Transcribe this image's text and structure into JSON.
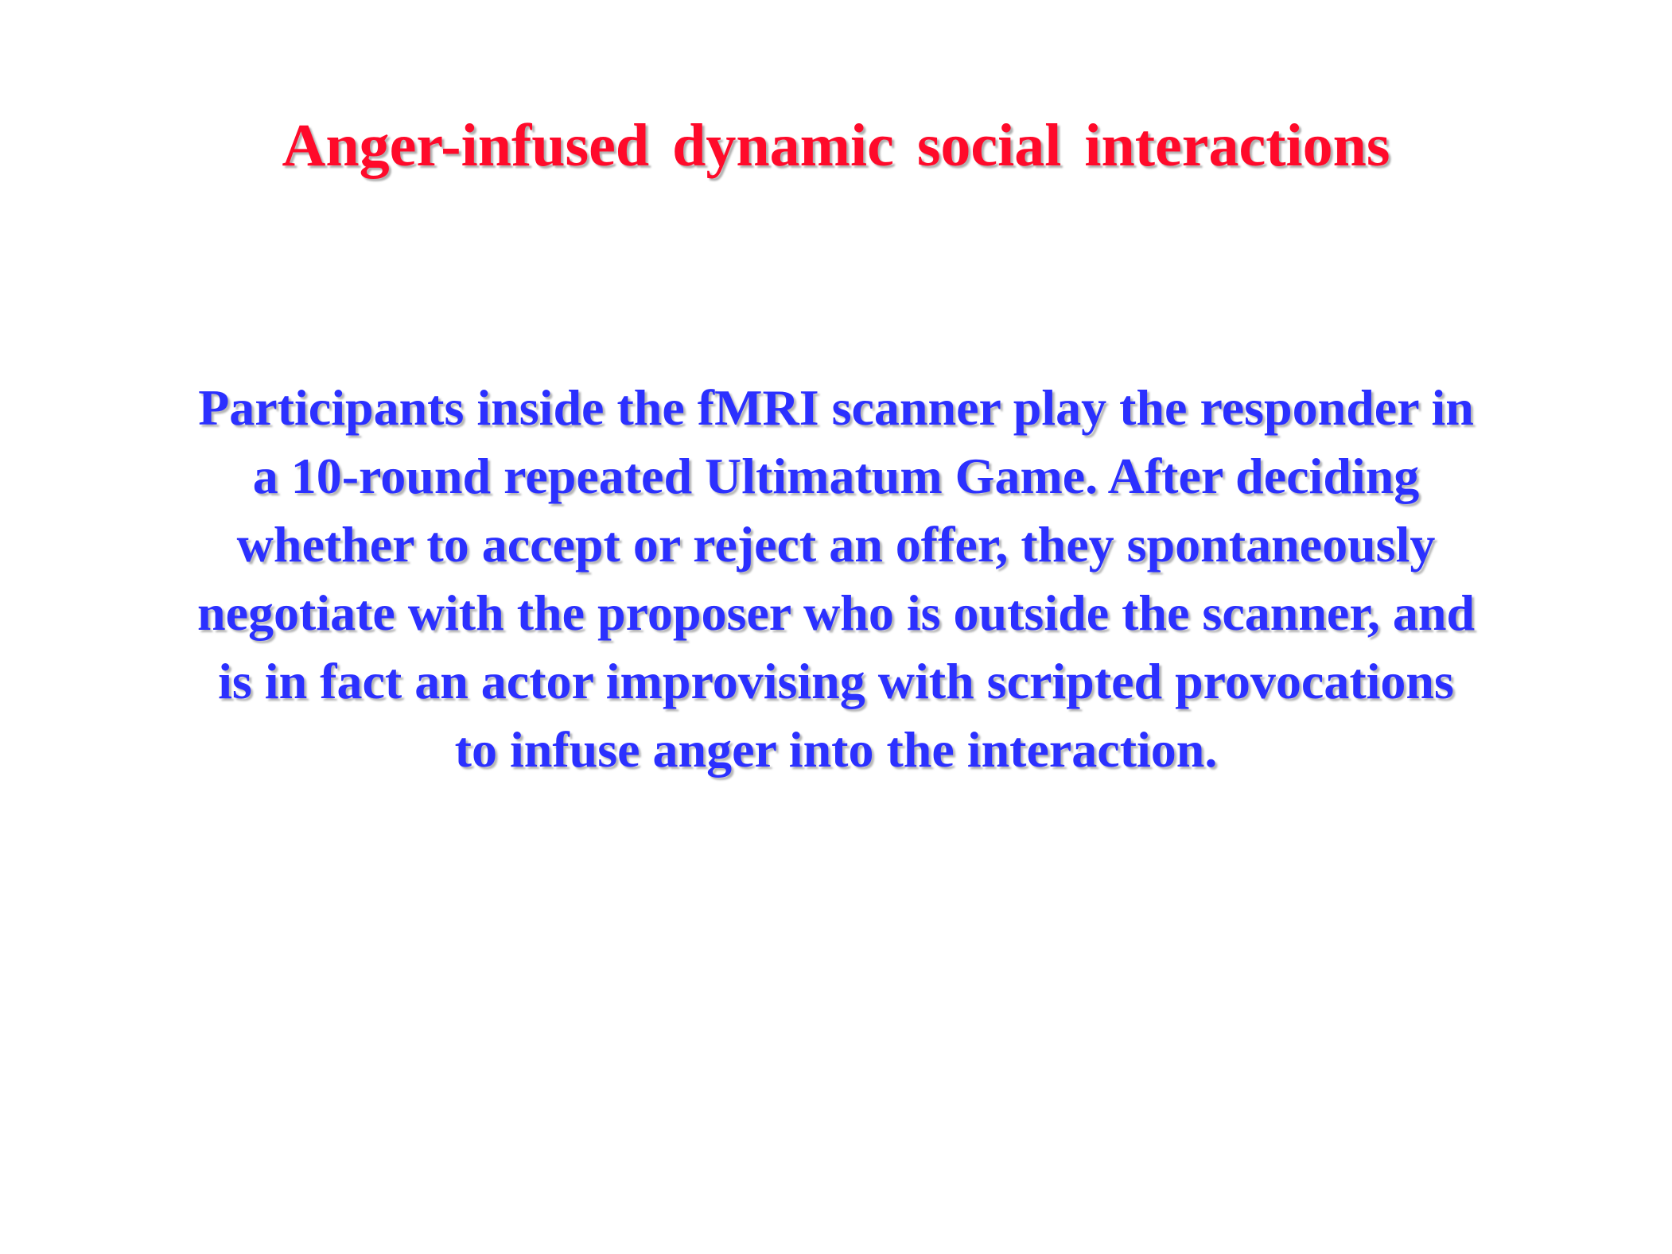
{
  "slide": {
    "title": "Anger-infused dynamic social interactions",
    "body": "Participants inside the fMRI scanner play the responder in a 10-round repeated Ultimatum Game. After deciding whether to accept or reject an offer, they spontaneously negotiate with the proposer who is outside the scanner, and is in fact an actor improvising with scripted provocations to infuse anger into the interaction.",
    "colors": {
      "title": "#ff0a2a",
      "body": "#2b30ff",
      "background": "#ffffff"
    }
  }
}
